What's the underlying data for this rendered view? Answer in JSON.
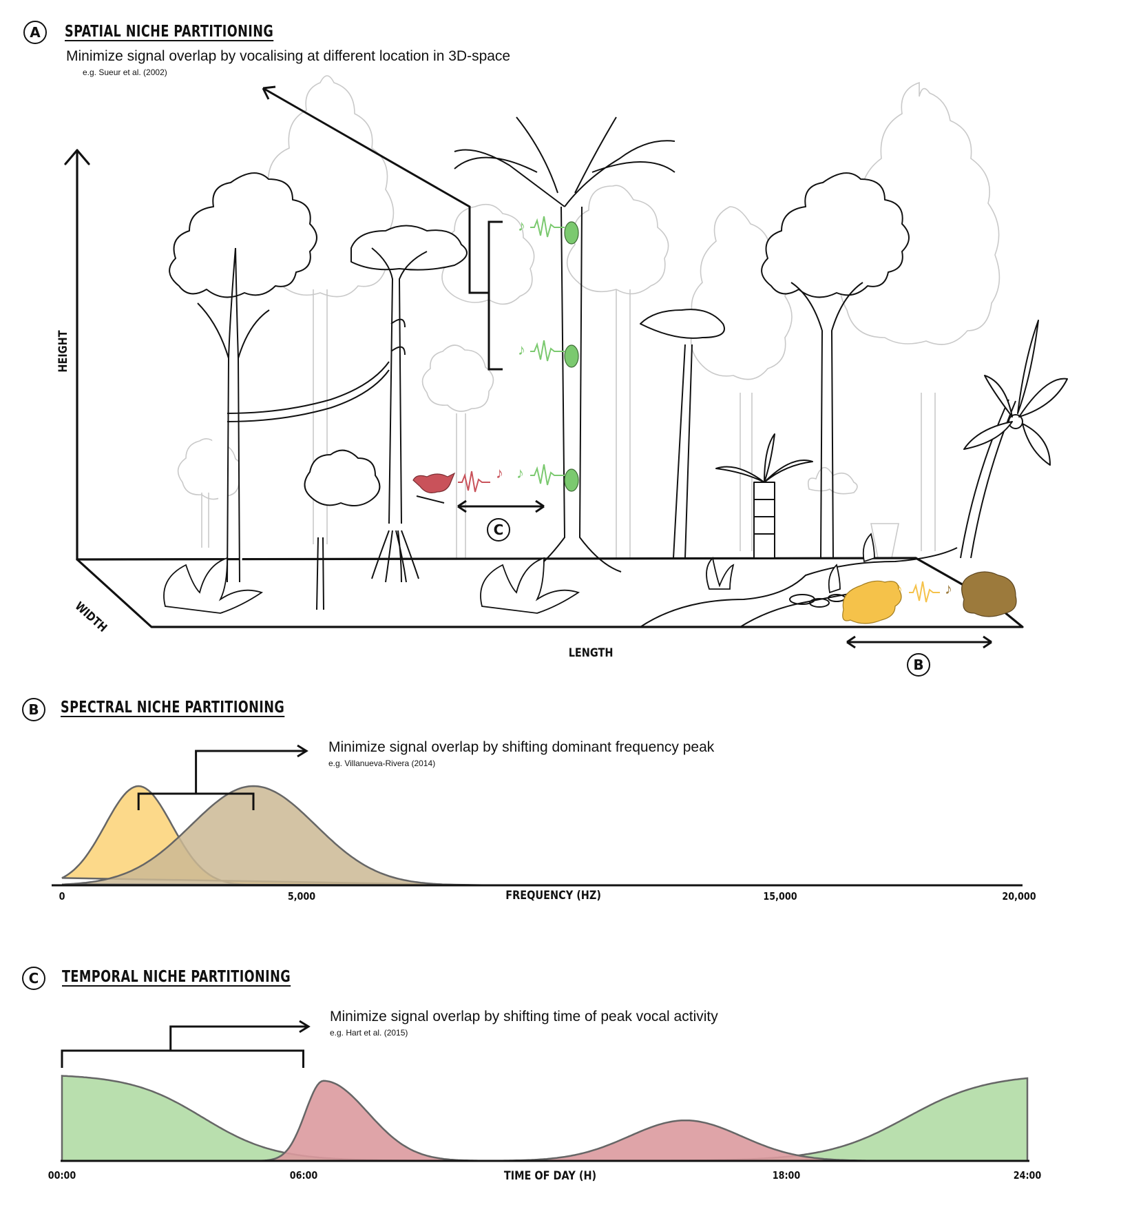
{
  "panel_a": {
    "badge": "A",
    "title": "SPATIAL NICHE PARTITIONING",
    "description": "Minimize signal overlap by vocalising at different location in 3D-space",
    "reference": "e.g. Sueur et al. (2002)",
    "axis_height": "HEIGHT",
    "axis_width": "WIDTH",
    "axis_length": "LENGTH",
    "marker_c": "C",
    "marker_b": "B",
    "colors": {
      "insect": "#7bc96f",
      "bird": "#c9525a",
      "frog_yellow": "#f5c24a",
      "frog_brown": "#9c7a3c"
    }
  },
  "panel_b": {
    "badge": "B",
    "title": "SPECTRAL NICHE PARTITIONING",
    "description": "Minimize signal overlap by shifting dominant frequency peak",
    "reference": "e.g. Villanueva-Rivera  (2014)"
  },
  "panel_c": {
    "badge": "C",
    "title": "TEMPORAL NICHE PARTITIONING",
    "description": "Minimize signal overlap by shifting time of peak vocal activity",
    "reference": "e.g. Hart et al. (2015)"
  },
  "chart_data": [
    {
      "type": "area",
      "xlabel": "FREQUENCY (HZ)",
      "x_ticks": [
        "0",
        "5,000",
        "15,000",
        "20,000"
      ],
      "x_tick_values": [
        0,
        5000,
        15000,
        20000
      ],
      "xlim": [
        0,
        20000
      ],
      "series": [
        {
          "color": "#fcd98a",
          "peak_x": 1600,
          "width": 700,
          "peak_level": 0.8
        },
        {
          "color": "#cbb994",
          "peak_x": 4000,
          "width": 1300,
          "peak_level": 0.8
        }
      ]
    },
    {
      "type": "area",
      "xlabel": "TIME OF DAY (H)",
      "x_ticks": [
        "00:00",
        "06:00",
        "18:00",
        "24:00"
      ],
      "x_tick_values": [
        0,
        6,
        18,
        24
      ],
      "xlim": [
        0,
        24
      ],
      "series": [
        {
          "color": "#b9dfae",
          "shape": "night",
          "peak_level": 0.9
        },
        {
          "color": "#dc9a9f",
          "shape": "two-peaks",
          "peaks": [
            6.5,
            15.5
          ],
          "peak_levels": [
            0.83,
            0.42
          ]
        }
      ]
    }
  ]
}
